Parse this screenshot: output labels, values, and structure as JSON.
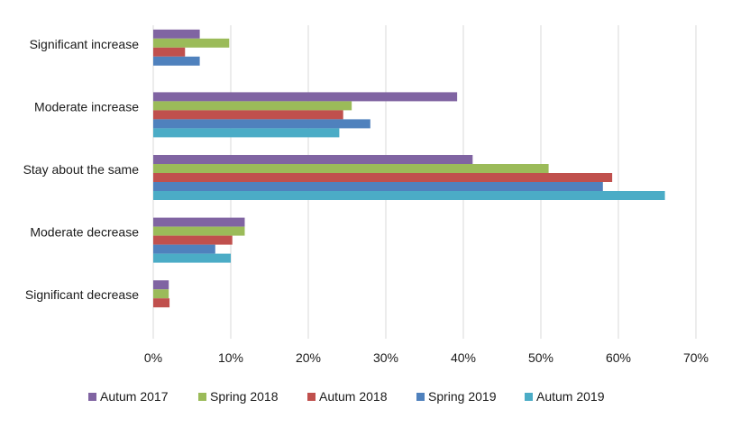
{
  "chart_data": {
    "type": "bar",
    "orientation": "horizontal",
    "title": "",
    "xlabel": "",
    "ylabel": "",
    "xlim": [
      0,
      70
    ],
    "x_ticks": [
      "0%",
      "10%",
      "20%",
      "30%",
      "40%",
      "50%",
      "60%",
      "70%"
    ],
    "grid": true,
    "legend_position": "bottom",
    "categories": [
      "Significant increase",
      "Moderate increase",
      "Stay about the same",
      "Moderate decrease",
      "Significant decrease"
    ],
    "series": [
      {
        "name": "Autum 2017",
        "color": "#8064A2",
        "values": [
          6,
          39.2,
          41.2,
          11.8,
          2
        ]
      },
      {
        "name": "Spring 2018",
        "color": "#9BBB59",
        "values": [
          9.8,
          25.6,
          51,
          11.8,
          2
        ]
      },
      {
        "name": "Autum 2018",
        "color": "#C0504D",
        "values": [
          4.1,
          24.5,
          59.2,
          10.2,
          2.1
        ]
      },
      {
        "name": "Spring 2019",
        "color": "#4F81BD",
        "values": [
          6,
          28,
          58,
          8,
          0
        ]
      },
      {
        "name": "Autum 2019",
        "color": "#4BACC6",
        "values": [
          0,
          24,
          66,
          10,
          0
        ]
      }
    ]
  }
}
